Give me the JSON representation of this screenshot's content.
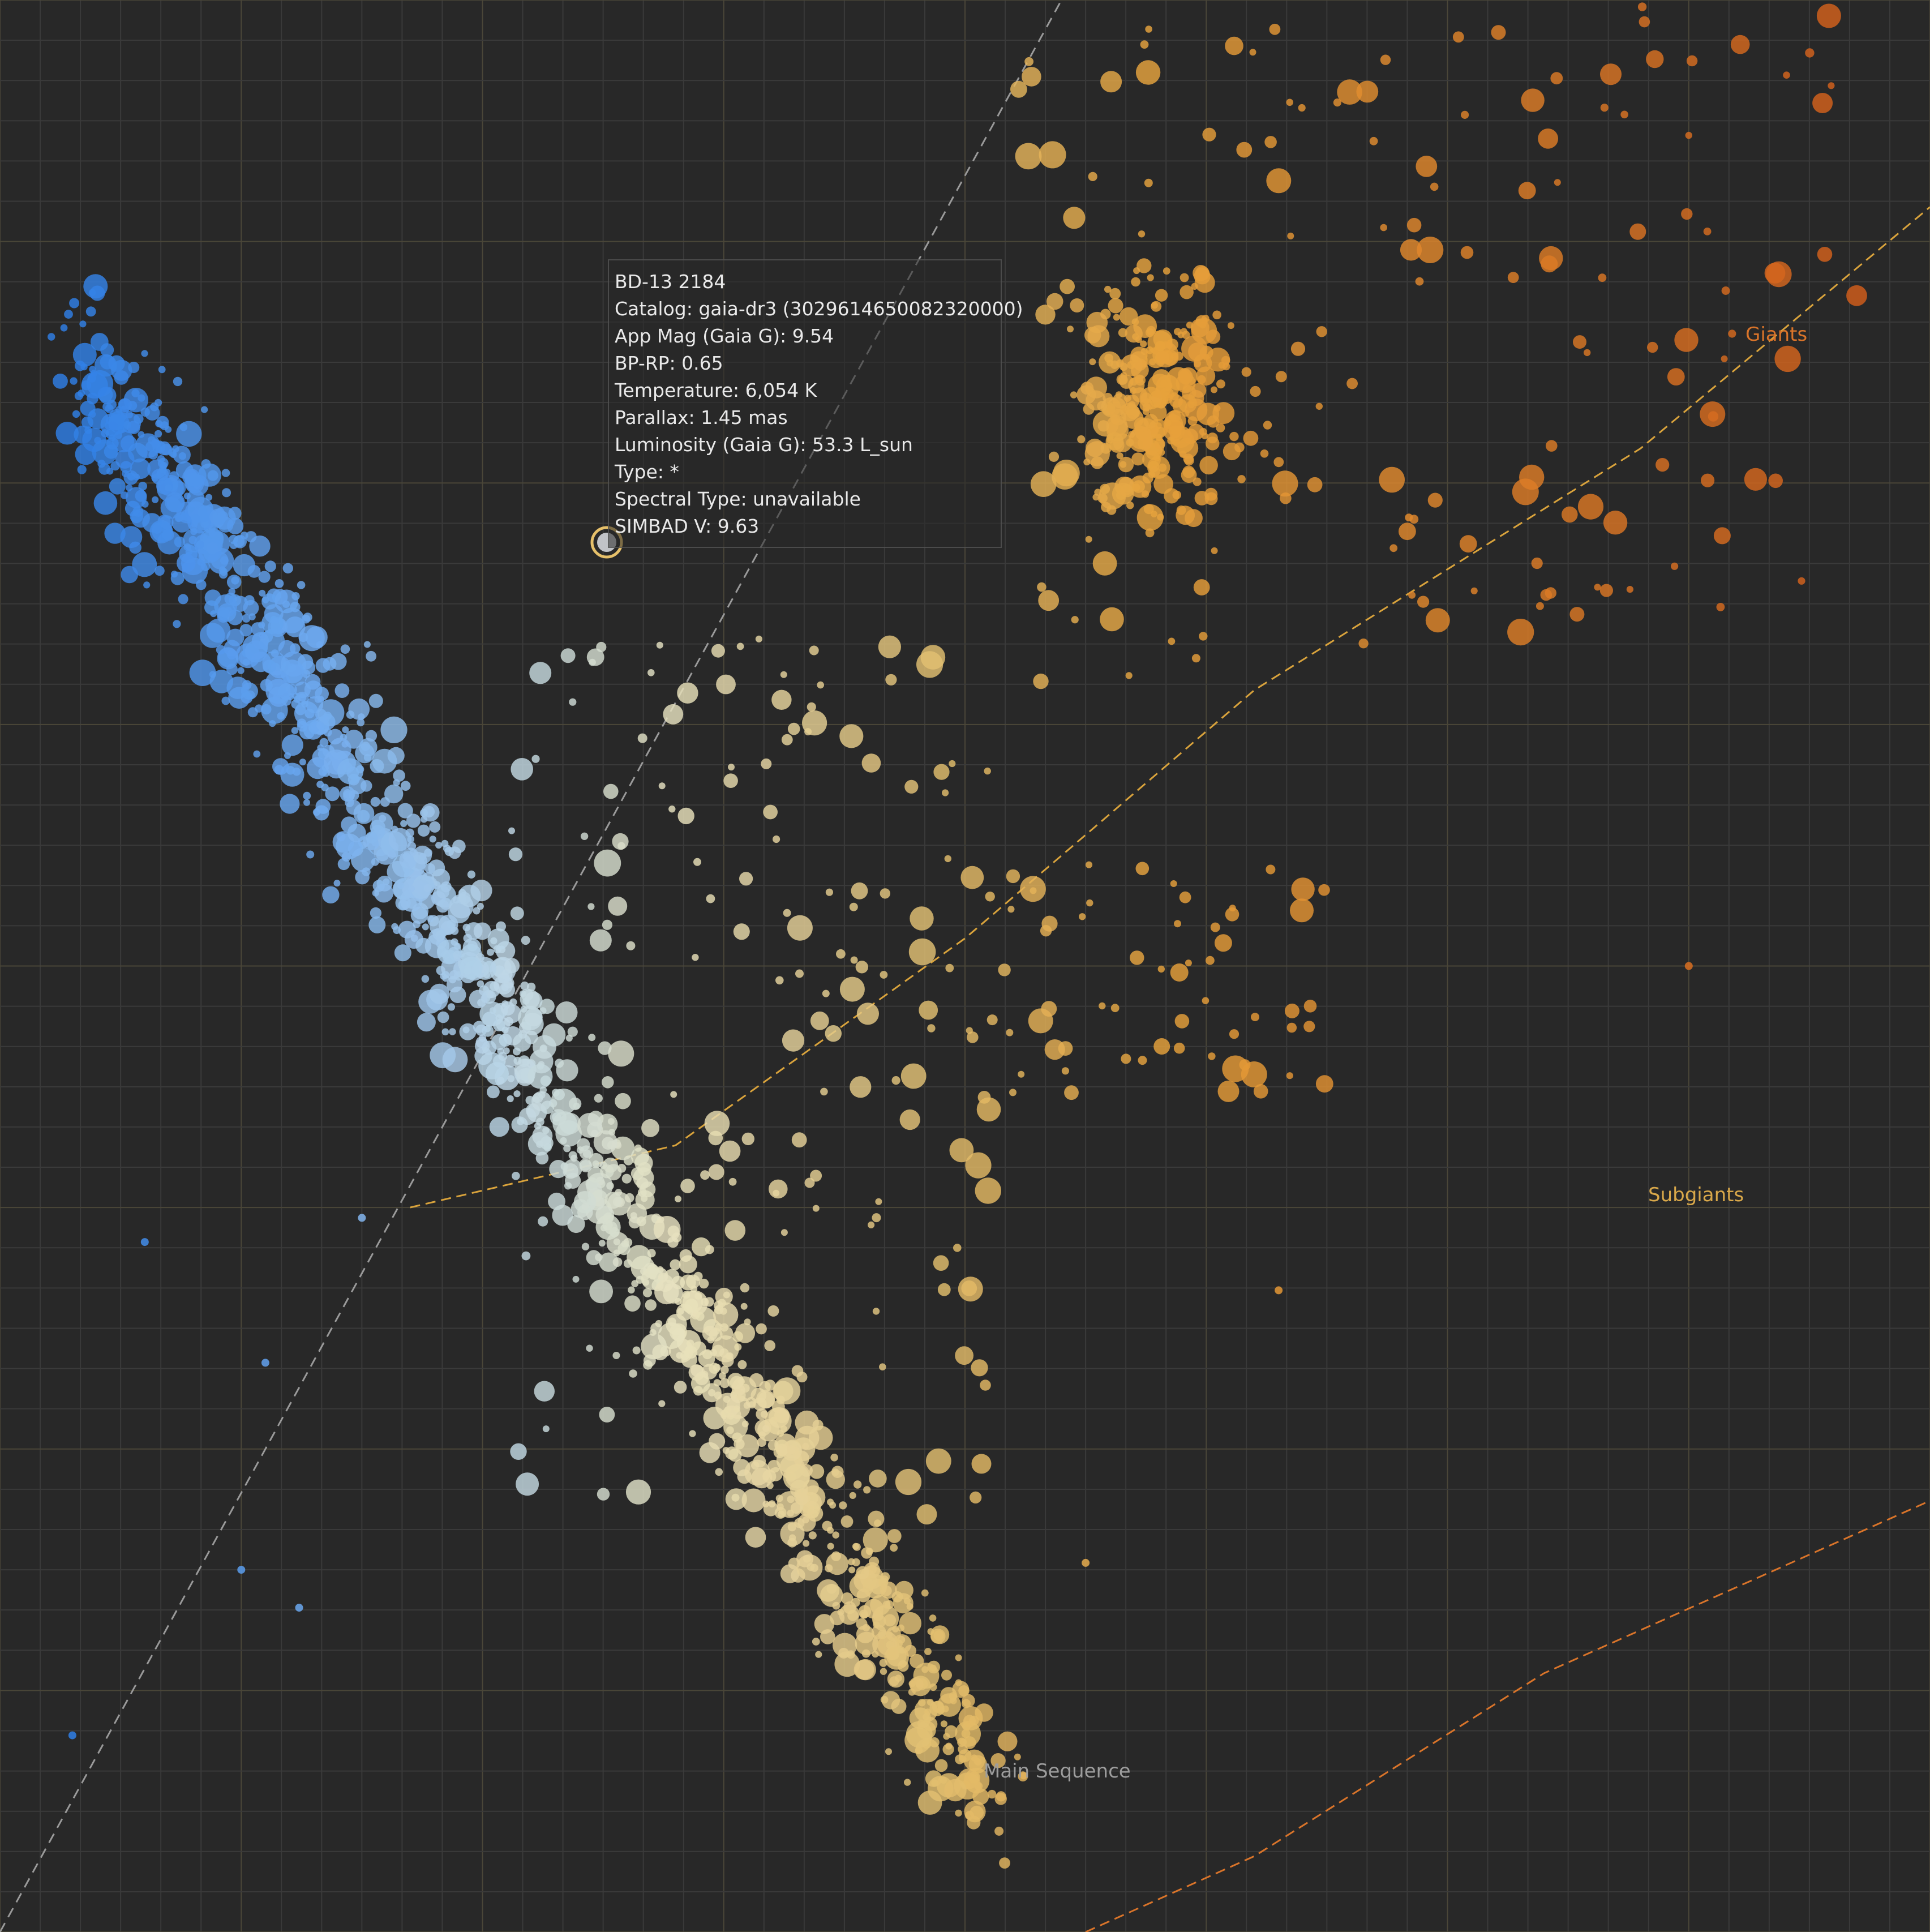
{
  "theme": {
    "background": "#282828",
    "grid_minor": "#3a3a3a",
    "grid_major": "#4a4638",
    "hot_star": "#2f7fe6",
    "mid_star": "#dcdcc8",
    "cool_star": "#e6a23c",
    "red_star": "#d9651c",
    "main_sequence_line": "#9a9a9a",
    "subgiant_line": "#d9a33c",
    "giant_line": "#d9742a",
    "main_sequence_label_color": "#9d9d9d",
    "subgiant_label_color": "#d9a84a",
    "giant_label_color": "#d9742a"
  },
  "regions": {
    "main_sequence": "Main Sequence",
    "subgiants": "Subgiants",
    "giants": "Giants"
  },
  "tooltip": {
    "name": "BD-13 2184",
    "catalog": "Catalog: gaia-dr3 (3029614650082320000)",
    "app_mag": "App Mag (Gaia G): 9.54",
    "bp_rp": "BP-RP: 0.65",
    "temperature": "Temperature: 6,054 K",
    "parallax": "Parallax: 1.45 mas",
    "luminosity": "Luminosity (Gaia G): 53.3 L_sun",
    "type": "Type: *",
    "spectral_type": "Spectral Type: unavailable",
    "simbad_v": "SIMBAD V: 9.63"
  },
  "chart_data": {
    "type": "scatter",
    "xlabel": "",
    "ylabel": "",
    "xlim": [
      -0.5,
      3.5
    ],
    "ylim": [
      4.0,
      -1.6
    ],
    "grid": true,
    "legend": "none",
    "highlighted_point": {
      "bp_rp": 0.65,
      "log_lum": 1.73
    },
    "reference_lines": {
      "main_sequence": [
        [
          -0.5,
          4.0
        ],
        [
          1.7,
          -1.6
        ]
      ],
      "subgiants": [
        [
          0.35,
          1.9
        ],
        [
          0.9,
          1.72
        ],
        [
          1.5,
          1.12
        ],
        [
          2.1,
          0.4
        ],
        [
          2.9,
          -0.3
        ],
        [
          3.5,
          -1.0
        ]
      ],
      "giants": [
        [
          1.75,
          4.0
        ],
        [
          2.1,
          3.78
        ],
        [
          2.7,
          3.25
        ],
        [
          3.5,
          2.75
        ]
      ]
    },
    "clusters": [
      {
        "name": "main_sequence_upper",
        "count": 650,
        "x": [
          -0.32,
          0.45
        ],
        "y_center_slope": [
          3.2,
          -0.42
        ],
        "spread": 0.32
      },
      {
        "name": "main_sequence_lower",
        "count": 750,
        "x": [
          0.45,
          1.55
        ],
        "y_center_slope": [
          3.2,
          -0.42
        ],
        "spread": 0.28
      },
      {
        "name": "turnoff_scatter",
        "count": 180,
        "x": [
          0.5,
          1.6
        ],
        "y": [
          0.2,
          2.9
        ]
      },
      {
        "name": "red_clump",
        "count": 260,
        "cx": 1.9,
        "cy": 2.45,
        "rx": 0.26,
        "ry": 0.3
      },
      {
        "name": "giant_branch",
        "count": 170,
        "x": [
          1.6,
          3.35
        ],
        "y": [
          2.3,
          3.9
        ]
      },
      {
        "name": "subgiant_scatter",
        "count": 60,
        "x": [
          1.55,
          2.25
        ],
        "y": [
          0.7,
          1.4
        ]
      }
    ]
  }
}
